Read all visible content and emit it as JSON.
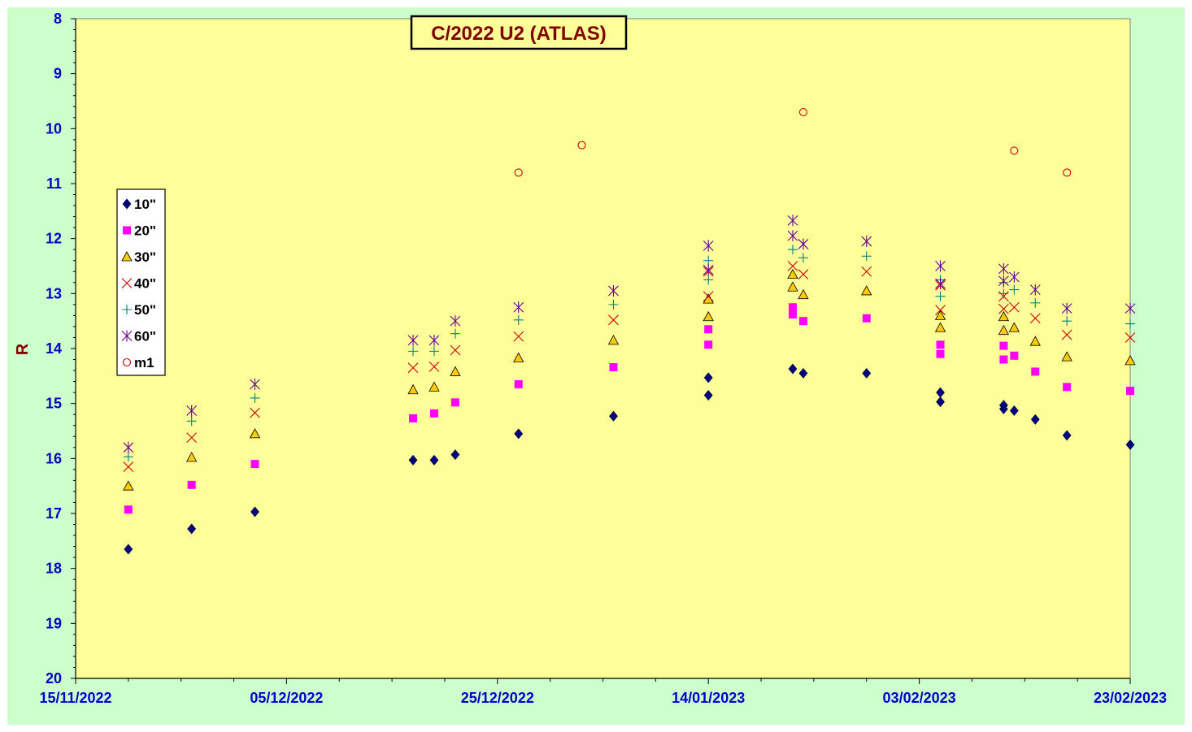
{
  "chart_data": {
    "type": "scatter",
    "title": "C/2022 U2 (ATLAS)",
    "xlabel": "",
    "ylabel": "R",
    "xlim": [
      "2022-11-15",
      "2023-02-23"
    ],
    "ylim": [
      8,
      20
    ],
    "y_inverted": true,
    "yticks": [
      "8",
      "9",
      "10",
      "11",
      "12",
      "13",
      "14",
      "15",
      "16",
      "17",
      "18",
      "19",
      "20"
    ],
    "xticks": [
      "15/11/2022",
      "05/12/2022",
      "25/12/2022",
      "14/01/2023",
      "03/02/2023",
      "23/02/2023"
    ],
    "grid": false,
    "legend_position": "left",
    "colors": {
      "plot_background": "#ffff99",
      "outer_background": "#ccffcc",
      "axis_text": "#0000cc",
      "title_text": "#800000"
    },
    "series": [
      {
        "name": "10\"",
        "marker": "diamond",
        "color": "#000080",
        "points": [
          [
            "2022-11-20",
            17.65
          ],
          [
            "2022-11-26",
            17.28
          ],
          [
            "2022-12-02",
            16.97
          ],
          [
            "2022-12-17",
            16.03
          ],
          [
            "2022-12-19",
            16.03
          ],
          [
            "2022-12-21",
            15.93
          ],
          [
            "2022-12-27",
            15.55
          ],
          [
            "2023-01-05",
            15.23
          ],
          [
            "2023-01-14",
            14.53
          ],
          [
            "2023-01-14",
            14.85
          ],
          [
            "2023-01-22",
            14.37
          ],
          [
            "2023-01-23",
            14.45
          ],
          [
            "2023-01-29",
            14.45
          ],
          [
            "2023-02-05",
            14.8
          ],
          [
            "2023-02-05",
            14.97
          ],
          [
            "2023-02-11",
            15.03
          ],
          [
            "2023-02-11",
            15.1
          ],
          [
            "2023-02-12",
            15.13
          ],
          [
            "2023-02-14",
            15.29
          ],
          [
            "2023-02-17",
            15.58
          ],
          [
            "2023-02-23",
            15.75
          ]
        ]
      },
      {
        "name": "20\"",
        "marker": "square",
        "color": "#ff00ff",
        "points": [
          [
            "2022-11-20",
            16.93
          ],
          [
            "2022-11-26",
            16.48
          ],
          [
            "2022-12-02",
            16.1
          ],
          [
            "2022-12-17",
            15.27
          ],
          [
            "2022-12-19",
            15.18
          ],
          [
            "2022-12-21",
            14.98
          ],
          [
            "2022-12-27",
            14.65
          ],
          [
            "2023-01-05",
            14.34
          ],
          [
            "2023-01-14",
            13.65
          ],
          [
            "2023-01-14",
            13.93
          ],
          [
            "2023-01-22",
            13.25
          ],
          [
            "2023-01-22",
            13.38
          ],
          [
            "2023-01-23",
            13.5
          ],
          [
            "2023-01-29",
            13.45
          ],
          [
            "2023-02-05",
            13.93
          ],
          [
            "2023-02-05",
            14.1
          ],
          [
            "2023-02-11",
            13.95
          ],
          [
            "2023-02-11",
            14.2
          ],
          [
            "2023-02-12",
            14.13
          ],
          [
            "2023-02-14",
            14.42
          ],
          [
            "2023-02-17",
            14.7
          ],
          [
            "2023-02-23",
            14.77
          ]
        ]
      },
      {
        "name": "30\"",
        "marker": "triangle",
        "color": "#ffcc00",
        "points": [
          [
            "2022-11-20",
            16.5
          ],
          [
            "2022-11-26",
            15.98
          ],
          [
            "2022-12-02",
            15.55
          ],
          [
            "2022-12-17",
            14.75
          ],
          [
            "2022-12-19",
            14.7
          ],
          [
            "2022-12-21",
            14.42
          ],
          [
            "2022-12-27",
            14.17
          ],
          [
            "2023-01-05",
            13.85
          ],
          [
            "2023-01-14",
            13.1
          ],
          [
            "2023-01-14",
            13.42
          ],
          [
            "2023-01-22",
            12.65
          ],
          [
            "2023-01-22",
            12.88
          ],
          [
            "2023-01-23",
            13.02
          ],
          [
            "2023-01-29",
            12.95
          ],
          [
            "2023-02-05",
            13.4
          ],
          [
            "2023-02-05",
            13.62
          ],
          [
            "2023-02-11",
            13.42
          ],
          [
            "2023-02-11",
            13.67
          ],
          [
            "2023-02-12",
            13.62
          ],
          [
            "2023-02-14",
            13.87
          ],
          [
            "2023-02-17",
            14.15
          ],
          [
            "2023-02-23",
            14.22
          ]
        ]
      },
      {
        "name": "40\"",
        "marker": "x",
        "color": "#cc0000",
        "points": [
          [
            "2022-11-20",
            16.15
          ],
          [
            "2022-11-26",
            15.62
          ],
          [
            "2022-12-02",
            15.17
          ],
          [
            "2022-12-17",
            14.35
          ],
          [
            "2022-12-19",
            14.33
          ],
          [
            "2022-12-21",
            14.03
          ],
          [
            "2022-12-27",
            13.78
          ],
          [
            "2023-01-05",
            13.48
          ],
          [
            "2023-01-14",
            12.6
          ],
          [
            "2023-01-14",
            13.05
          ],
          [
            "2023-01-22",
            12.5
          ],
          [
            "2023-01-23",
            12.65
          ],
          [
            "2023-01-29",
            12.6
          ],
          [
            "2023-02-05",
            12.85
          ],
          [
            "2023-02-05",
            13.3
          ],
          [
            "2023-02-11",
            13.05
          ],
          [
            "2023-02-11",
            13.28
          ],
          [
            "2023-02-12",
            13.25
          ],
          [
            "2023-02-14",
            13.45
          ],
          [
            "2023-02-17",
            13.75
          ],
          [
            "2023-02-23",
            13.8
          ]
        ]
      },
      {
        "name": "50\"",
        "marker": "plus",
        "color": "#008080",
        "points": [
          [
            "2022-11-20",
            15.97
          ],
          [
            "2022-11-26",
            15.32
          ],
          [
            "2022-12-02",
            14.9
          ],
          [
            "2022-12-17",
            14.05
          ],
          [
            "2022-12-19",
            14.05
          ],
          [
            "2022-12-21",
            13.73
          ],
          [
            "2022-12-27",
            13.48
          ],
          [
            "2023-01-05",
            13.2
          ],
          [
            "2023-01-14",
            12.4
          ],
          [
            "2023-01-14",
            12.75
          ],
          [
            "2023-01-22",
            12.2
          ],
          [
            "2023-01-23",
            12.35
          ],
          [
            "2023-01-29",
            12.32
          ],
          [
            "2023-02-05",
            12.75
          ],
          [
            "2023-02-05",
            13.05
          ],
          [
            "2023-02-11",
            12.8
          ],
          [
            "2023-02-11",
            13.0
          ],
          [
            "2023-02-12",
            12.93
          ],
          [
            "2023-02-14",
            13.17
          ],
          [
            "2023-02-17",
            13.5
          ],
          [
            "2023-02-23",
            13.55
          ]
        ]
      },
      {
        "name": "60\"",
        "marker": "star",
        "color": "#660099",
        "points": [
          [
            "2022-11-20",
            15.8
          ],
          [
            "2022-11-26",
            15.13
          ],
          [
            "2022-12-02",
            14.65
          ],
          [
            "2022-12-17",
            13.85
          ],
          [
            "2022-12-19",
            13.85
          ],
          [
            "2022-12-21",
            13.5
          ],
          [
            "2022-12-27",
            13.25
          ],
          [
            "2023-01-05",
            12.95
          ],
          [
            "2023-01-14",
            12.13
          ],
          [
            "2023-01-14",
            12.57
          ],
          [
            "2023-01-22",
            11.67
          ],
          [
            "2023-01-22",
            11.95
          ],
          [
            "2023-01-23",
            12.1
          ],
          [
            "2023-01-29",
            12.05
          ],
          [
            "2023-02-05",
            12.5
          ],
          [
            "2023-02-05",
            12.82
          ],
          [
            "2023-02-11",
            12.55
          ],
          [
            "2023-02-11",
            12.77
          ],
          [
            "2023-02-12",
            12.7
          ],
          [
            "2023-02-14",
            12.93
          ],
          [
            "2023-02-17",
            13.27
          ],
          [
            "2023-02-23",
            13.27
          ]
        ]
      },
      {
        "name": "m1",
        "marker": "circle",
        "color": "#cc0000",
        "points": [
          [
            "2022-12-27",
            10.8
          ],
          [
            "2023-01-02",
            10.3
          ],
          [
            "2023-01-23",
            9.7
          ],
          [
            "2023-02-12",
            10.4
          ],
          [
            "2023-02-17",
            10.8
          ]
        ]
      }
    ]
  }
}
